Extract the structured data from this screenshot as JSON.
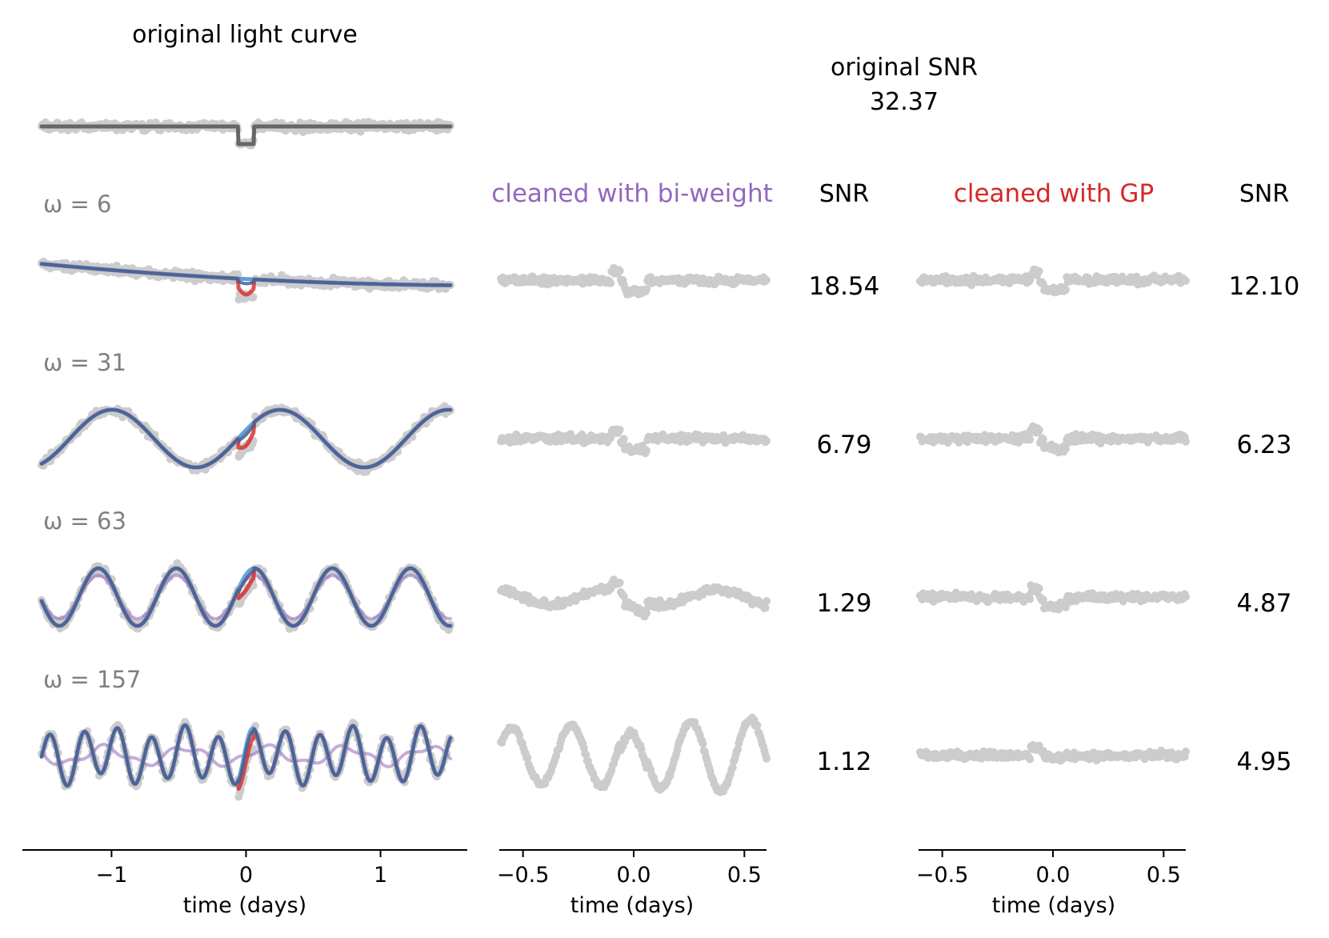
{
  "titles": {
    "original_light_curve": "original light curve",
    "original_snr_label": "original SNR",
    "original_snr_value": "32.37",
    "biweight_header": "cleaned with bi-weight",
    "gp_header": "cleaned with GP",
    "snr_header": "SNR"
  },
  "colors": {
    "data_points": "#cccccc",
    "model_dark": "#666666",
    "biweight": "#9467bd",
    "gp": "#d62728",
    "true_trend": "#5b9bd5",
    "fit_blend": "#4a5a8c",
    "omega_label": "#808080"
  },
  "chart_data": [
    {
      "type": "scatter",
      "panel": "light curves",
      "xlabel": "time (days)",
      "xlim": [
        -1.6,
        1.65
      ],
      "xticks": [
        -1,
        0,
        1
      ],
      "xtick_labels": [
        "−1",
        "0",
        "1"
      ],
      "rows": [
        {
          "label": "",
          "omega": 0,
          "description": "original light curve with transit dip at t≈0"
        },
        {
          "label": "ω = 6",
          "omega": 6
        },
        {
          "label": "ω = 31",
          "omega": 31
        },
        {
          "label": "ω = 63",
          "omega": 63
        },
        {
          "label": "ω = 157",
          "omega": 157
        }
      ],
      "series": [
        {
          "name": "",
          "color": "#cccccc",
          "kind": "scatter"
        },
        {
          "name": "",
          "color": "#9467bd",
          "kind": "line"
        },
        {
          "name": "",
          "color": "#d62728",
          "kind": "line"
        },
        {
          "name": "",
          "color": "#5b9bd5",
          "kind": "line"
        }
      ]
    },
    {
      "type": "scatter",
      "panel": "cleaned with bi-weight",
      "xlabel": "time (days)",
      "xlim": [
        -0.6,
        0.6
      ],
      "xticks": [
        -0.5,
        0.0,
        0.5
      ],
      "xtick_labels": [
        "−0.5",
        "0.0",
        "0.5"
      ],
      "snr": [
        "18.54",
        "6.79",
        "1.29",
        "1.12"
      ]
    },
    {
      "type": "scatter",
      "panel": "cleaned with GP",
      "xlabel": "time (days)",
      "xlim": [
        -0.6,
        0.6
      ],
      "xticks": [
        -0.5,
        0.0,
        0.5
      ],
      "xtick_labels": [
        "−0.5",
        "0.0",
        "0.5"
      ],
      "snr": [
        "12.10",
        "6.23",
        "4.87",
        "4.95"
      ]
    }
  ]
}
